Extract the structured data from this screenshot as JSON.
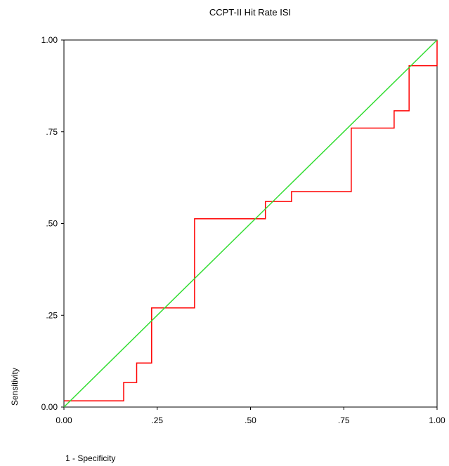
{
  "chart_data": {
    "type": "line",
    "title": "CCPT-II Hit Rate ISI",
    "xlabel": "1 - Specificity",
    "ylabel": "Sensitivity",
    "xlim": [
      0,
      1
    ],
    "ylim": [
      0,
      1
    ],
    "x_ticks": [
      "0.00",
      ".25",
      ".50",
      ".75",
      "1.00"
    ],
    "y_ticks": [
      "0.00",
      ".25",
      ".50",
      ".75",
      "1.00"
    ],
    "tick_values": [
      0,
      0.25,
      0.5,
      0.75,
      1
    ],
    "grid": false,
    "series": [
      {
        "color": "#ff0000",
        "points": [
          [
            0.0,
            0.017
          ],
          [
            0.16,
            0.017
          ],
          [
            0.16,
            0.067
          ],
          [
            0.195,
            0.067
          ],
          [
            0.195,
            0.12
          ],
          [
            0.235,
            0.12
          ],
          [
            0.235,
            0.27
          ],
          [
            0.35,
            0.27
          ],
          [
            0.35,
            0.513
          ],
          [
            0.54,
            0.513
          ],
          [
            0.54,
            0.56
          ],
          [
            0.61,
            0.56
          ],
          [
            0.61,
            0.587
          ],
          [
            0.77,
            0.587
          ],
          [
            0.77,
            0.76
          ],
          [
            0.885,
            0.76
          ],
          [
            0.885,
            0.807
          ],
          [
            0.925,
            0.807
          ],
          [
            0.925,
            0.93
          ],
          [
            1.0,
            0.93
          ],
          [
            1.0,
            1.0
          ]
        ]
      },
      {
        "color": "#33dd33",
        "points": [
          [
            0,
            0
          ],
          [
            1,
            1
          ]
        ]
      }
    ]
  }
}
